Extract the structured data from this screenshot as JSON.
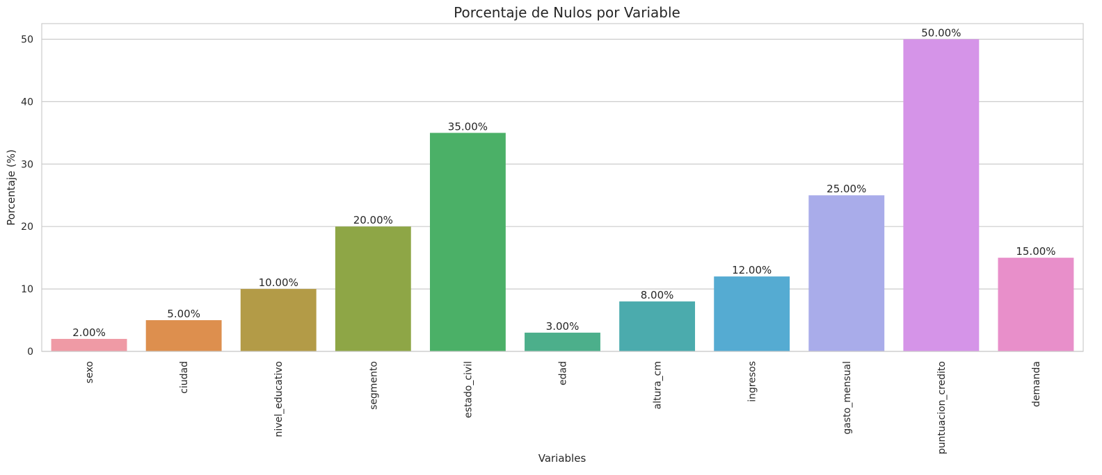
{
  "chart_data": {
    "type": "bar",
    "title": "Porcentaje de Nulos por Variable",
    "xlabel": "Variables",
    "ylabel": "Porcentaje (%)",
    "ylim": [
      0,
      52.5
    ],
    "yticks": [
      0,
      10,
      20,
      30,
      40,
      50
    ],
    "grid": "horizontal",
    "categories": [
      "sexo",
      "ciudad",
      "nivel_educativo",
      "segmento",
      "estado_civil",
      "edad",
      "altura_cm",
      "ingresos",
      "gasto_mensual",
      "puntuacion_credito",
      "demanda"
    ],
    "values": [
      2,
      5,
      10,
      20,
      35,
      3,
      8,
      12,
      25,
      50,
      15
    ],
    "data_labels": [
      "2.00%",
      "5.00%",
      "10.00%",
      "20.00%",
      "35.00%",
      "3.00%",
      "8.00%",
      "12.00%",
      "25.00%",
      "50.00%",
      "15.00%"
    ],
    "colors": [
      "#ef9aa5",
      "#dd8f4e",
      "#b39b47",
      "#8ea646",
      "#4bb067",
      "#4caf8b",
      "#4babad",
      "#55abd2",
      "#a9acea",
      "#d594e8",
      "#e88fca"
    ],
    "grid_color": "#cccccc",
    "background": "#ffffff"
  }
}
